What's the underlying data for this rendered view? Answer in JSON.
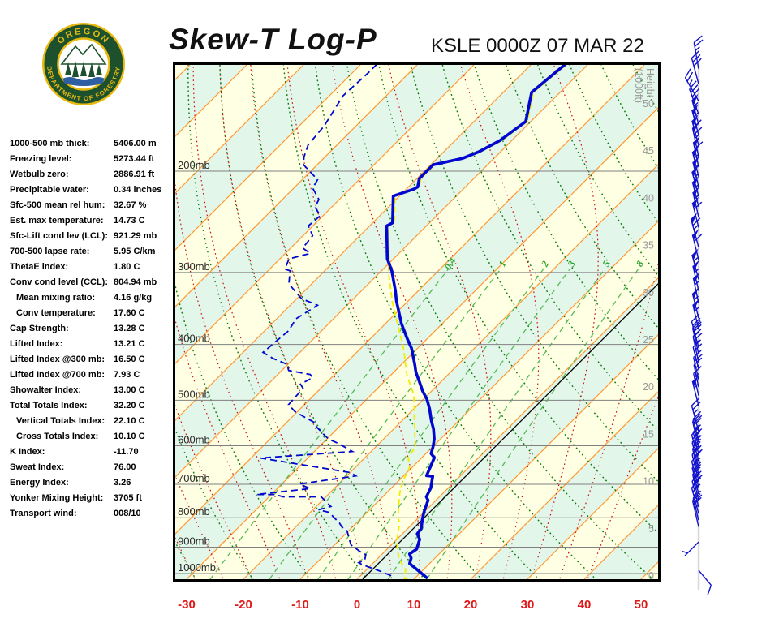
{
  "header": {
    "title": "Skew-T Log-P",
    "station": "KSLE 0000Z 07 MAR 22",
    "logo": {
      "top_text": "OREGON",
      "bottom_text": "DEPARTMENT OF FORESTRY"
    }
  },
  "indices": [
    {
      "label": "1000-500 mb thick:",
      "value": "5406.00 m",
      "indent": false
    },
    {
      "label": "Freezing level:",
      "value": "5273.44 ft",
      "indent": false
    },
    {
      "label": "Wetbulb zero:",
      "value": "2886.91 ft",
      "indent": false
    },
    {
      "label": "Precipitable water:",
      "value": "0.34 inches",
      "indent": false
    },
    {
      "label": "Sfc-500 mean rel hum:",
      "value": "32.67 %",
      "indent": false
    },
    {
      "label": "Est. max temperature:",
      "value": "14.73 C",
      "indent": false
    },
    {
      "label": "Sfc-Lift cond lev (LCL):",
      "value": "921.29 mb",
      "indent": false
    },
    {
      "label": "700-500 lapse rate:",
      "value": "5.95 C/km",
      "indent": false
    },
    {
      "label": "ThetaE index:",
      "value": "1.80 C",
      "indent": false
    },
    {
      "label": "Conv cond level (CCL):",
      "value": "804.94 mb",
      "indent": false
    },
    {
      "label": "Mean mixing ratio:",
      "value": "4.16 g/kg",
      "indent": true
    },
    {
      "label": "Conv temperature:",
      "value": "17.60 C",
      "indent": true
    },
    {
      "label": "Cap Strength:",
      "value": "13.28 C",
      "indent": false
    },
    {
      "label": "Lifted Index:",
      "value": "13.21 C",
      "indent": false
    },
    {
      "label": "Lifted Index @300 mb:",
      "value": "16.50 C",
      "indent": false
    },
    {
      "label": "Lifted Index @700 mb:",
      "value": "7.93 C",
      "indent": false
    },
    {
      "label": "Showalter Index:",
      "value": "13.00 C",
      "indent": false
    },
    {
      "label": "Total Totals Index:",
      "value": "32.20 C",
      "indent": false
    },
    {
      "label": "Vertical Totals Index:",
      "value": "22.10 C",
      "indent": true
    },
    {
      "label": "Cross Totals Index:",
      "value": "10.10 C",
      "indent": true
    },
    {
      "label": "K Index:",
      "value": "-11.70",
      "indent": false
    },
    {
      "label": "Sweat Index:",
      "value": "76.00",
      "indent": false
    },
    {
      "label": "Energy Index:",
      "value": "3.26",
      "indent": false
    },
    {
      "label": "Yonker Mixing Height:",
      "value": "3705 ft",
      "indent": false
    },
    {
      "label": "Transport wind:",
      "value": "008/10",
      "indent": false
    }
  ],
  "chart_data": {
    "type": "skewt-log-p",
    "x_axis": {
      "ticks": [
        -30,
        -20,
        -10,
        0,
        10,
        20,
        30,
        40,
        50
      ],
      "unit": "C"
    },
    "pressure_lines_mb": [
      200,
      300,
      400,
      500,
      600,
      700,
      800,
      900,
      1000
    ],
    "height_axis": {
      "title": "Height",
      "subtitle": "(1000ft)",
      "ticks": [
        0,
        5,
        10,
        15,
        20,
        25,
        30,
        35,
        40,
        45,
        50
      ]
    },
    "isotherm_step_c": 10,
    "freezing_isotherm_c": 0,
    "dry_adiabats_theta_c": [
      -30,
      -20,
      -10,
      0,
      10,
      20,
      30,
      40,
      50,
      60,
      70,
      80,
      90,
      100,
      110,
      120,
      130,
      140,
      150
    ],
    "moist_adiabats_thetaw_c": [
      -40,
      -35,
      -30,
      -25,
      -20,
      -15,
      -10,
      -5,
      0,
      5,
      10,
      15,
      20,
      25,
      30,
      35,
      40
    ],
    "mixing_ratio_g_kg": [
      0.4,
      1,
      2,
      3,
      5,
      8
    ],
    "temperature_profile": [
      [
        1019,
        12.2
      ],
      [
        987,
        9.1
      ],
      [
        961,
        6.5
      ],
      [
        940,
        5.8
      ],
      [
        925,
        4.8
      ],
      [
        907,
        5.2
      ],
      [
        872,
        4.0
      ],
      [
        853,
        2.6
      ],
      [
        836,
        2.4
      ],
      [
        804,
        0.9
      ],
      [
        783,
        0.0
      ],
      [
        746,
        -1.4
      ],
      [
        736,
        -2.3
      ],
      [
        710,
        -3.1
      ],
      [
        678,
        -4.8
      ],
      [
        676,
        -6.0
      ],
      [
        629,
        -7.8
      ],
      [
        619,
        -9.1
      ],
      [
        603,
        -9.9
      ],
      [
        584,
        -11.1
      ],
      [
        561,
        -13.0
      ],
      [
        543,
        -14.8
      ],
      [
        517,
        -17.3
      ],
      [
        498,
        -19.4
      ],
      [
        482,
        -21.6
      ],
      [
        462,
        -24.1
      ],
      [
        447,
        -26.1
      ],
      [
        433,
        -27.7
      ],
      [
        406,
        -31.1
      ],
      [
        393,
        -33.2
      ],
      [
        368,
        -37.2
      ],
      [
        336,
        -42.1
      ],
      [
        323,
        -44.0
      ],
      [
        298,
        -48.2
      ],
      [
        284,
        -51.1
      ],
      [
        249,
        -57.0
      ],
      [
        246,
        -56.5
      ],
      [
        221,
        -61.1
      ],
      [
        215,
        -58.7
      ],
      [
        213,
        -58.4
      ],
      [
        206,
        -59.6
      ],
      [
        195,
        -59.6
      ],
      [
        190,
        -55.5
      ],
      [
        185,
        -53.8
      ],
      [
        177,
        -52.1
      ],
      [
        164,
        -50.9
      ],
      [
        146,
        -55.0
      ],
      [
        130,
        -54.0
      ]
    ],
    "dewpoint_profile": [
      [
        1009,
        5.4
      ],
      [
        989,
        2.4
      ],
      [
        967,
        -1.4
      ],
      [
        958,
        -2.6
      ],
      [
        948,
        -2.0
      ],
      [
        927,
        -2.8
      ],
      [
        918,
        -4.1
      ],
      [
        892,
        -7.1
      ],
      [
        872,
        -8.4
      ],
      [
        844,
        -10.2
      ],
      [
        830,
        -11.9
      ],
      [
        817,
        -13.0
      ],
      [
        783,
        -16.7
      ],
      [
        775,
        -19.0
      ],
      [
        765,
        -17.4
      ],
      [
        758,
        -18.2
      ],
      [
        736,
        -20.8
      ],
      [
        736,
        -27.5
      ],
      [
        729,
        -29.3
      ],
      [
        729,
        -32.6
      ],
      [
        712,
        -24.2
      ],
      [
        699,
        -26.9
      ],
      [
        677,
        -18.4
      ],
      [
        668,
        -19.9
      ],
      [
        634,
        -36.4
      ],
      [
        630,
        -38.4
      ],
      [
        614,
        -23.3
      ],
      [
        594,
        -27.3
      ],
      [
        584,
        -29.7
      ],
      [
        575,
        -31.1
      ],
      [
        556,
        -34.0
      ],
      [
        547,
        -35.0
      ],
      [
        538,
        -37.1
      ],
      [
        523,
        -40.5
      ],
      [
        509,
        -42.8
      ],
      [
        477,
        -43.1
      ],
      [
        469,
        -44.3
      ],
      [
        457,
        -43.3
      ],
      [
        451,
        -44.3
      ],
      [
        444,
        -48.8
      ],
      [
        433,
        -50.2
      ],
      [
        423,
        -53.7
      ],
      [
        413,
        -56.5
      ],
      [
        379,
        -55.8
      ],
      [
        361,
        -56.6
      ],
      [
        342,
        -55.2
      ],
      [
        333,
        -59.2
      ],
      [
        314,
        -64.0
      ],
      [
        298,
        -66.1
      ],
      [
        296,
        -67.3
      ],
      [
        284,
        -68.4
      ],
      [
        278,
        -65.6
      ],
      [
        272,
        -67.9
      ],
      [
        259,
        -68.3
      ],
      [
        249,
        -70.8
      ],
      [
        239,
        -70.5
      ],
      [
        231,
        -72.9
      ],
      [
        224,
        -73.6
      ],
      [
        214,
        -76.7
      ],
      [
        207,
        -77.3
      ],
      [
        195,
        -82.4
      ],
      [
        189,
        -83.7
      ],
      [
        180,
        -85.1
      ],
      [
        167,
        -85.6
      ],
      [
        148,
        -87.6
      ],
      [
        135,
        -87.2
      ],
      [
        130,
        -87.2
      ]
    ],
    "wetbulb_profile": [
      [
        1026,
        9.2
      ],
      [
        1019,
        8.2
      ],
      [
        983,
        6.8
      ],
      [
        961,
        5.1
      ],
      [
        937,
        3.5
      ],
      [
        907,
        1.8
      ],
      [
        872,
        0.0
      ],
      [
        817,
        -2.4
      ],
      [
        799,
        -3.7
      ],
      [
        724,
        -7.7
      ],
      [
        694,
        -9.1
      ],
      [
        655,
        -10.4
      ],
      [
        629,
        -12.4
      ],
      [
        603,
        -13.0
      ],
      [
        543,
        -17.8
      ],
      [
        490,
        -22.4
      ],
      [
        452,
        -27.2
      ],
      [
        406,
        -32.5
      ],
      [
        368,
        -37.9
      ],
      [
        337,
        -42.7
      ],
      [
        298,
        -48.8
      ],
      [
        284,
        -50.8
      ],
      [
        249,
        -56.7
      ],
      [
        246,
        -56.2
      ],
      [
        221,
        -60.8
      ],
      [
        215,
        -58.4
      ],
      [
        213,
        -58.1
      ],
      [
        206,
        -59.3
      ],
      [
        195,
        -59.3
      ],
      [
        190,
        -55.2
      ],
      [
        185,
        -53.5
      ],
      [
        177,
        -51.8
      ],
      [
        164,
        -50.6
      ],
      [
        146,
        -54.7
      ],
      [
        130,
        -53.7
      ]
    ],
    "wind_barbs": [
      {
        "kft": 53.7,
        "dir": 350,
        "kt": 25
      },
      {
        "kft": 52.1,
        "dir": 345,
        "kt": 30
      },
      {
        "kft": 50.3,
        "dir": 330,
        "kt": 25
      },
      {
        "kft": 48.9,
        "dir": 340,
        "kt": 30
      },
      {
        "kft": 47.8,
        "dir": 345,
        "kt": 55
      },
      {
        "kft": 46.7,
        "dir": 345,
        "kt": 55
      },
      {
        "kft": 45.6,
        "dir": 345,
        "kt": 60
      },
      {
        "kft": 44.4,
        "dir": 348,
        "kt": 65
      },
      {
        "kft": 43.3,
        "dir": 348,
        "kt": 60
      },
      {
        "kft": 42.3,
        "dir": 346,
        "kt": 55
      },
      {
        "kft": 41.2,
        "dir": 347,
        "kt": 55
      },
      {
        "kft": 40.2,
        "dir": 345,
        "kt": 55
      },
      {
        "kft": 39.1,
        "dir": 346,
        "kt": 55
      },
      {
        "kft": 38.0,
        "dir": 347,
        "kt": 55
      },
      {
        "kft": 36.9,
        "dir": 346,
        "kt": 60
      },
      {
        "kft": 34.8,
        "dir": 345,
        "kt": 65
      },
      {
        "kft": 33.5,
        "dir": 346,
        "kt": 60
      },
      {
        "kft": 31.4,
        "dir": 345,
        "kt": 55
      },
      {
        "kft": 30.2,
        "dir": 347,
        "kt": 55
      },
      {
        "kft": 28.9,
        "dir": 348,
        "kt": 55
      },
      {
        "kft": 27.3,
        "dir": 346,
        "kt": 55
      },
      {
        "kft": 26.1,
        "dir": 347,
        "kt": 55
      },
      {
        "kft": 24.2,
        "dir": 345,
        "kt": 30
      },
      {
        "kft": 23.5,
        "dir": 347,
        "kt": 25
      },
      {
        "kft": 22.6,
        "dir": 348,
        "kt": 25
      },
      {
        "kft": 21.9,
        "dir": 346,
        "kt": 20
      },
      {
        "kft": 20.8,
        "dir": 347,
        "kt": 20
      },
      {
        "kft": 20.0,
        "dir": 348,
        "kt": 15
      },
      {
        "kft": 19.1,
        "dir": 347,
        "kt": 15
      },
      {
        "kft": 18.0,
        "dir": 346,
        "kt": 55
      },
      {
        "kft": 15.3,
        "dir": 345,
        "kt": 25
      },
      {
        "kft": 14.3,
        "dir": 346,
        "kt": 20
      },
      {
        "kft": 13.6,
        "dir": 347,
        "kt": 25
      },
      {
        "kft": 12.9,
        "dir": 346,
        "kt": 20
      },
      {
        "kft": 12.2,
        "dir": 345,
        "kt": 30
      },
      {
        "kft": 11.4,
        "dir": 346,
        "kt": 25
      },
      {
        "kft": 10.7,
        "dir": 347,
        "kt": 30
      },
      {
        "kft": 10.1,
        "dir": 346,
        "kt": 25
      },
      {
        "kft": 9.4,
        "dir": 345,
        "kt": 30
      },
      {
        "kft": 8.7,
        "dir": 346,
        "kt": 25
      },
      {
        "kft": 8.0,
        "dir": 347,
        "kt": 30
      },
      {
        "kft": 7.3,
        "dir": 346,
        "kt": 25
      },
      {
        "kft": 6.6,
        "dir": 345,
        "kt": 25
      },
      {
        "kft": 5.9,
        "dir": 346,
        "kt": 20
      },
      {
        "kft": 5.2,
        "dir": 347,
        "kt": 25
      },
      {
        "kft": 3.6,
        "dir": 225,
        "kt": 5
      },
      {
        "kft": 0.6,
        "dir": 140,
        "kt": 10
      }
    ],
    "colors": {
      "band_yellow": "#ffffe3",
      "band_green": "#e3f6ea",
      "isotherm": "#ff9933",
      "dry_adiabat": "#0a7a0a",
      "moist_adiabat": "#cc1414",
      "mixing_ratio": "#55bb55",
      "pressure_line": "#808080",
      "temperature_trace": "#0008d0",
      "dewpoint_trace": "#0008d0",
      "wetbulb_trace": "#f0ed00",
      "freezing_line": "#000000",
      "x_tick": "#e01818",
      "wind": "#1212cc",
      "station_line": "#d9d9d9"
    }
  }
}
